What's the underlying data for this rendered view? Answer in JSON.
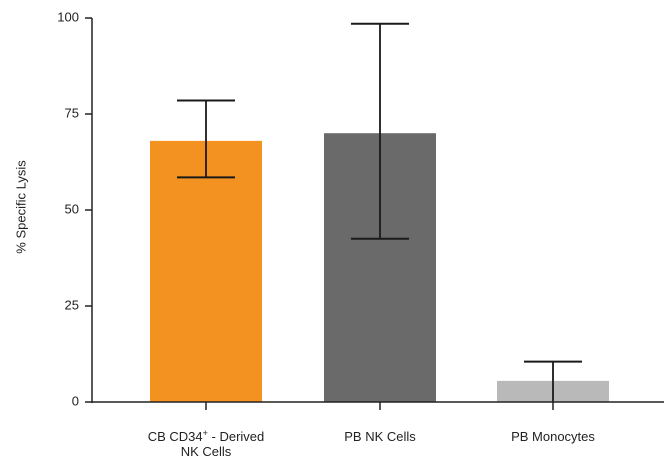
{
  "chart_data": {
    "type": "bar",
    "title": "",
    "xlabel": "",
    "ylabel": "% Specific Lysis",
    "ylim": [
      0,
      100
    ],
    "yticks": [
      0,
      25,
      50,
      75,
      100
    ],
    "grid": false,
    "legend": "none",
    "categories": [
      [
        "CB CD34",
        "+",
        " - Derived",
        "NK Cells"
      ],
      [
        "PB NK Cells"
      ],
      [
        "PB Monocytes"
      ]
    ],
    "category_text": [
      "CB CD34+ - Derived NK Cells",
      "PB NK Cells",
      "PB Monocytes"
    ],
    "values": [
      68,
      70,
      5.5
    ],
    "error_low": [
      58.5,
      42.5,
      0
    ],
    "error_high": [
      78.5,
      98.5,
      10.5
    ],
    "colors": [
      "#f39220",
      "#6b6a6a",
      "#b9b9b9"
    ],
    "axis_color": "#222222"
  }
}
